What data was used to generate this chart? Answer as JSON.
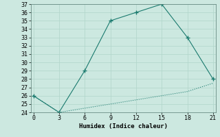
{
  "xlabel": "Humidex (Indice chaleur)",
  "x_upper": [
    0,
    3,
    6,
    9,
    12,
    15,
    18,
    21
  ],
  "y_upper": [
    26,
    24,
    29,
    35,
    36,
    37,
    33,
    28
  ],
  "x_lower": [
    0,
    3,
    6,
    9,
    12,
    15,
    18,
    21
  ],
  "y_lower": [
    26,
    24,
    24.5,
    25,
    25.5,
    26,
    26.5,
    27.5
  ],
  "line_color": "#1a7a6e",
  "bg_color": "#cce8e0",
  "grid_color": "#b0d4ca",
  "xlim": [
    -0.3,
    21.3
  ],
  "ylim": [
    24,
    37
  ],
  "xticks": [
    0,
    3,
    6,
    9,
    12,
    15,
    18,
    21
  ],
  "yticks": [
    24,
    25,
    26,
    27,
    28,
    29,
    30,
    31,
    32,
    33,
    34,
    35,
    36,
    37
  ],
  "label_fontsize": 6.5,
  "tick_fontsize": 6.0
}
